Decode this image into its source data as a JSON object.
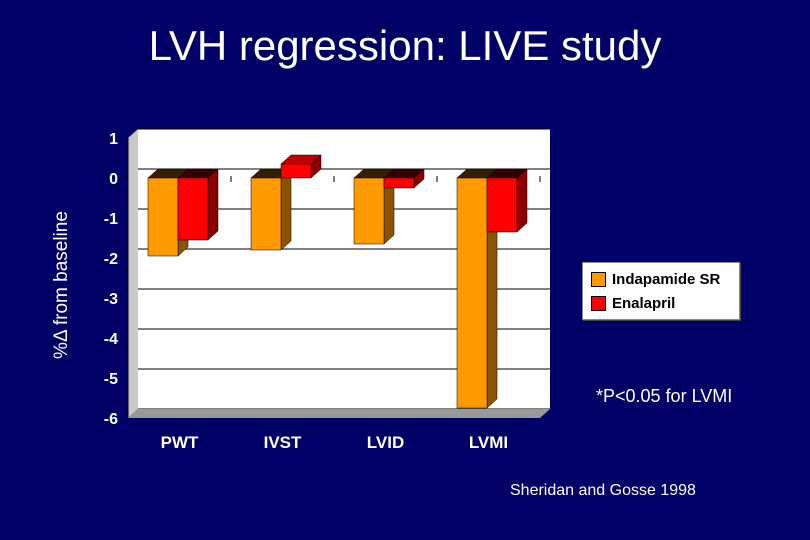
{
  "slide": {
    "title": "LVH regression: LIVE study",
    "footnote": "*P<0.05 for LVMI",
    "source": "Sheridan and Gosse 1998",
    "significance_marker": "*"
  },
  "chart_data": {
    "type": "bar",
    "title": "",
    "ylabel": "%Δ from baseline",
    "xlabel": "",
    "categories": [
      "PWT",
      "IVST",
      "LVID",
      "LVMI"
    ],
    "series": [
      {
        "name": "Indapamide SR",
        "color": "#ff9900",
        "values": [
          -1.95,
          -1.8,
          -1.65,
          -5.75
        ]
      },
      {
        "name": "Enalapril",
        "color": "#ff0000",
        "values": [
          -1.55,
          0.35,
          -0.25,
          -1.35
        ]
      }
    ],
    "ylim": [
      -6,
      1
    ],
    "yticks": [
      "1",
      "0",
      "-1",
      "-2",
      "-3",
      "-4",
      "-5",
      "-6"
    ],
    "grid": true,
    "legend_position": "right"
  }
}
